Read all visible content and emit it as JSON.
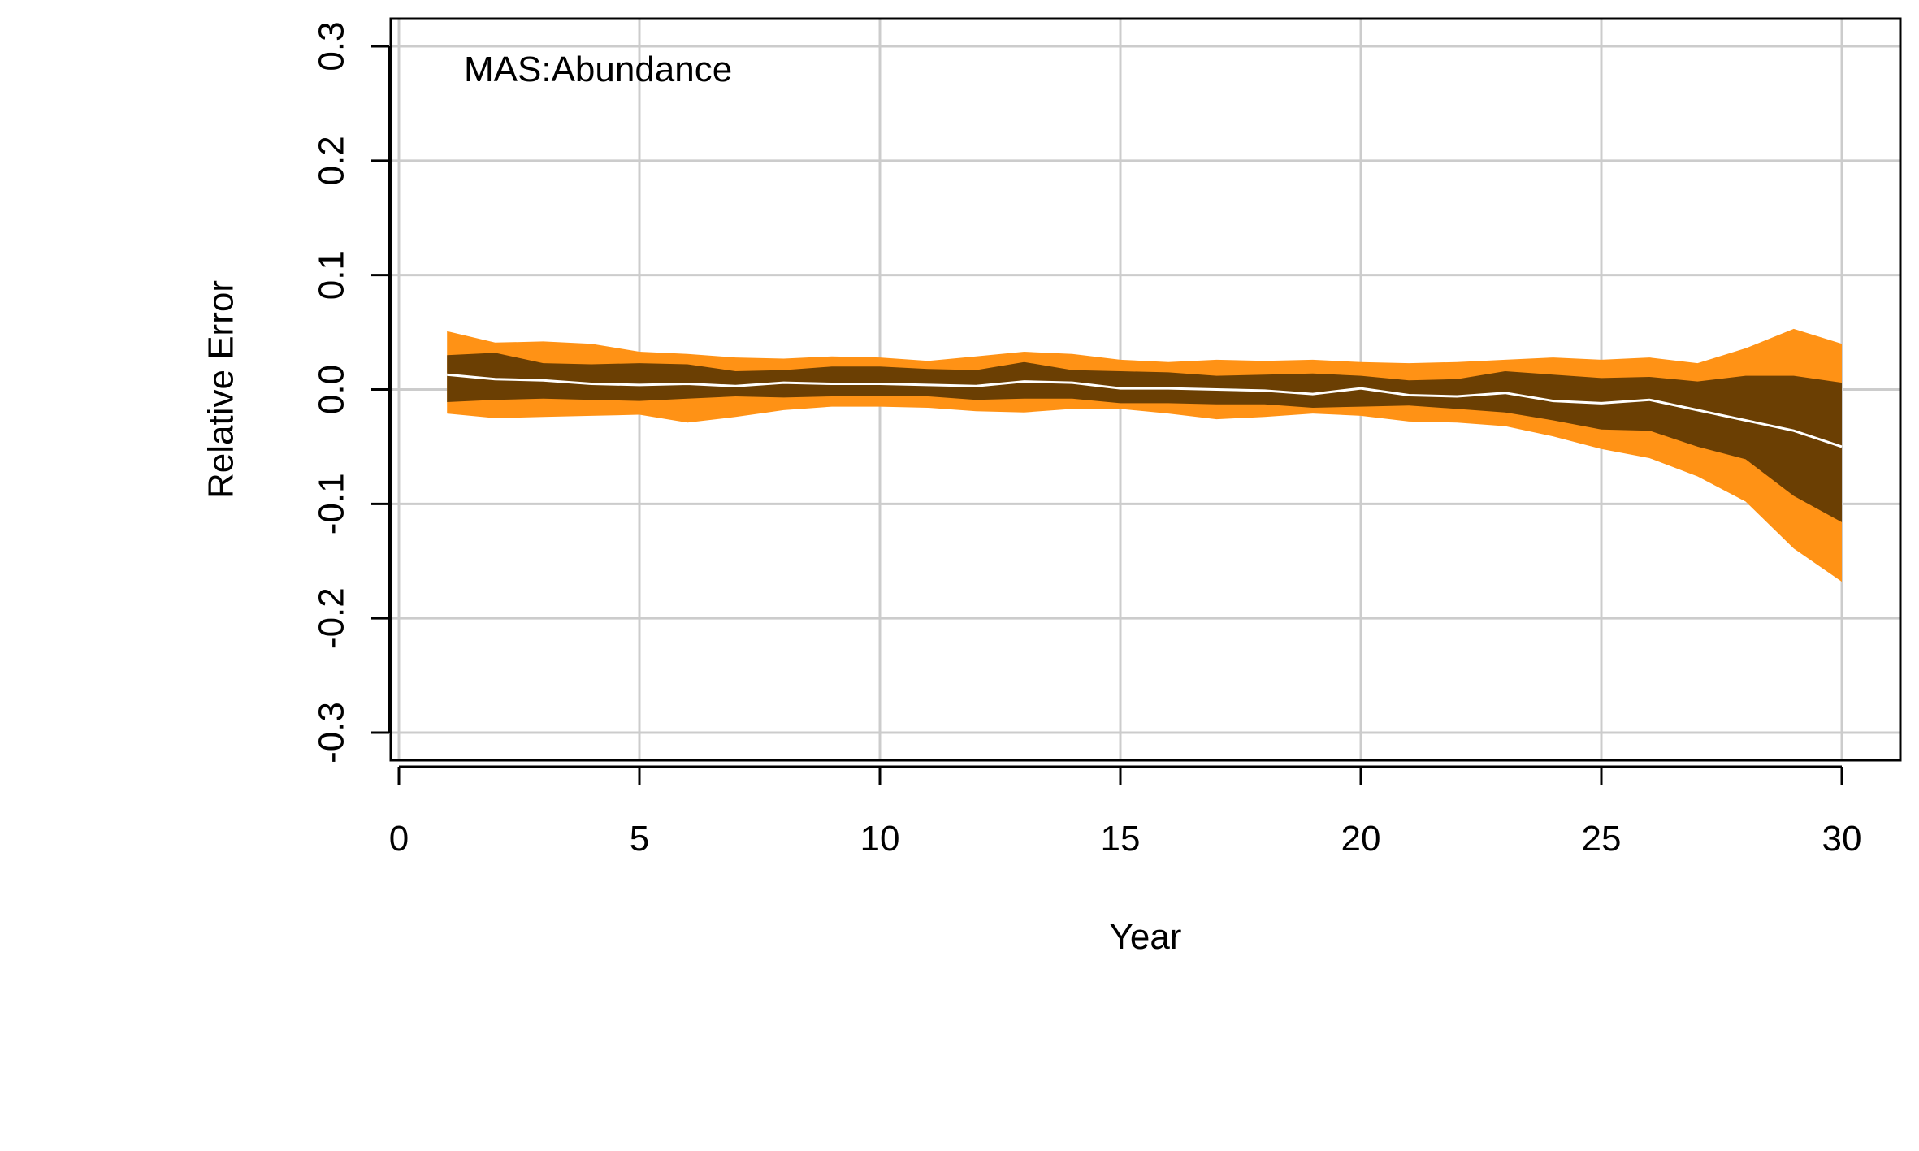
{
  "chart_data": {
    "type": "area",
    "panel_label": "MAS:Abundance",
    "xlabel": "Year",
    "ylabel": "Relative Error",
    "xlim": [
      0,
      30
    ],
    "ylim": [
      -0.3,
      0.3
    ],
    "xticks": [
      0,
      5,
      10,
      15,
      20,
      25,
      30
    ],
    "xtick_labels": [
      "0",
      "5",
      "10",
      "15",
      "20",
      "25",
      "30"
    ],
    "yticks": [
      -0.3,
      -0.2,
      -0.1,
      0.0,
      0.1,
      0.2,
      0.3
    ],
    "ytick_labels": [
      "-0.3",
      "-0.2",
      "-0.1",
      "0.0",
      "0.1",
      "0.2",
      "0.3"
    ],
    "grid": true,
    "colors": {
      "outer_band": "#ff9215",
      "inner_band": "#6b3f03",
      "median_line": "#ffffff",
      "grid": "#cccccc",
      "axis": "#000000"
    },
    "x": [
      1,
      2,
      3,
      4,
      5,
      6,
      7,
      8,
      9,
      10,
      11,
      12,
      13,
      14,
      15,
      16,
      17,
      18,
      19,
      20,
      21,
      22,
      23,
      24,
      25,
      26,
      27,
      28,
      29,
      30
    ],
    "series": [
      {
        "role": "outer_upper",
        "values": [
          0.051,
          0.041,
          0.042,
          0.04,
          0.033,
          0.031,
          0.028,
          0.027,
          0.029,
          0.028,
          0.025,
          0.029,
          0.033,
          0.031,
          0.026,
          0.024,
          0.026,
          0.025,
          0.026,
          0.024,
          0.023,
          0.024,
          0.026,
          0.028,
          0.026,
          0.028,
          0.023,
          0.036,
          0.053,
          0.04
        ]
      },
      {
        "role": "inner_upper",
        "values": [
          0.03,
          0.032,
          0.023,
          0.022,
          0.023,
          0.022,
          0.016,
          0.017,
          0.02,
          0.02,
          0.018,
          0.017,
          0.024,
          0.017,
          0.016,
          0.015,
          0.012,
          0.013,
          0.014,
          0.012,
          0.008,
          0.009,
          0.016,
          0.013,
          0.01,
          0.011,
          0.007,
          0.012,
          0.012,
          0.006
        ]
      },
      {
        "role": "median",
        "values": [
          0.013,
          0.009,
          0.008,
          0.005,
          0.004,
          0.005,
          0.003,
          0.006,
          0.005,
          0.005,
          0.004,
          0.003,
          0.007,
          0.006,
          0.001,
          0.001,
          0.0,
          -0.001,
          -0.004,
          0.001,
          -0.005,
          -0.006,
          -0.003,
          -0.01,
          -0.012,
          -0.009,
          -0.018,
          -0.027,
          -0.036,
          -0.05
        ]
      },
      {
        "role": "inner_lower",
        "values": [
          -0.011,
          -0.009,
          -0.008,
          -0.009,
          -0.01,
          -0.008,
          -0.006,
          -0.007,
          -0.006,
          -0.006,
          -0.006,
          -0.009,
          -0.008,
          -0.008,
          -0.012,
          -0.012,
          -0.013,
          -0.013,
          -0.016,
          -0.015,
          -0.014,
          -0.017,
          -0.02,
          -0.027,
          -0.035,
          -0.036,
          -0.05,
          -0.061,
          -0.093,
          -0.116
        ]
      },
      {
        "role": "outer_lower",
        "values": [
          -0.021,
          -0.025,
          -0.024,
          -0.023,
          -0.022,
          -0.029,
          -0.024,
          -0.018,
          -0.015,
          -0.015,
          -0.016,
          -0.019,
          -0.02,
          -0.017,
          -0.017,
          -0.021,
          -0.026,
          -0.024,
          -0.021,
          -0.023,
          -0.028,
          -0.029,
          -0.032,
          -0.041,
          -0.052,
          -0.06,
          -0.076,
          -0.098,
          -0.139,
          -0.168
        ]
      }
    ]
  }
}
